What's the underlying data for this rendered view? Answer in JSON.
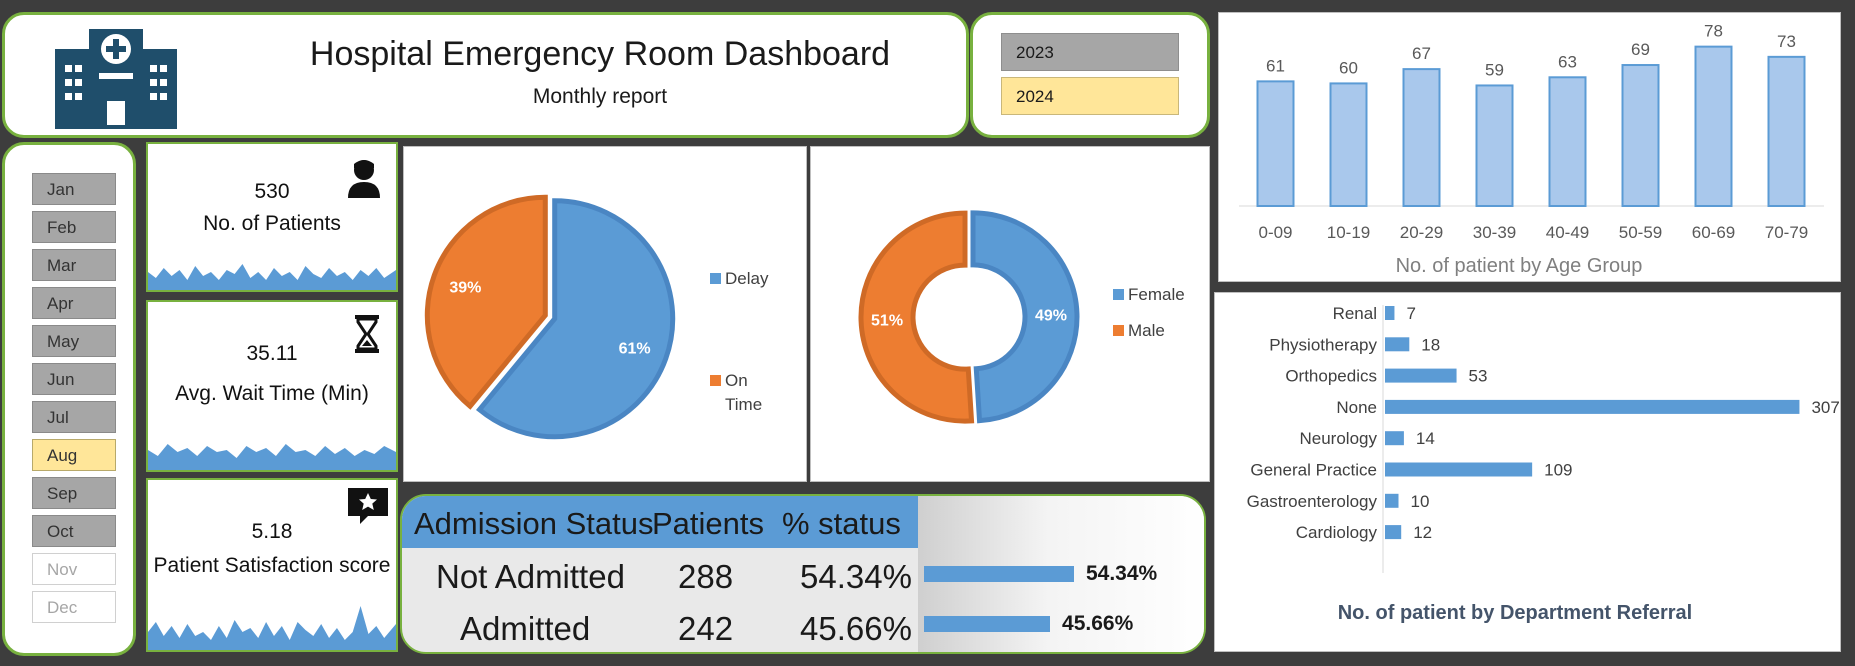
{
  "header": {
    "title": "Hospital Emergency Room Dashboard",
    "subtitle": "Monthly report",
    "icon": "hospital-building-icon"
  },
  "years": [
    {
      "label": "2023",
      "selected": false
    },
    {
      "label": "2024",
      "selected": true
    }
  ],
  "months": [
    {
      "label": "Jan",
      "state": "normal"
    },
    {
      "label": "Feb",
      "state": "normal"
    },
    {
      "label": "Mar",
      "state": "normal"
    },
    {
      "label": "Apr",
      "state": "normal"
    },
    {
      "label": "May",
      "state": "normal"
    },
    {
      "label": "Jun",
      "state": "normal"
    },
    {
      "label": "Jul",
      "state": "normal"
    },
    {
      "label": "Aug",
      "state": "selected"
    },
    {
      "label": "Sep",
      "state": "normal"
    },
    {
      "label": "Oct",
      "state": "normal"
    },
    {
      "label": "Nov",
      "state": "disabled"
    },
    {
      "label": "Dec",
      "state": "disabled"
    }
  ],
  "kpis": {
    "patients": {
      "value": "530",
      "label": "No. of Patients",
      "icon": "patient-icon"
    },
    "wait": {
      "value": "35.11",
      "label": "Avg. Wait Time (Min)",
      "icon": "hourglass-icon"
    },
    "satisfaction": {
      "value": "5.18",
      "label": "Patient Satisfaction score",
      "icon": "star-review-icon"
    }
  },
  "admission": {
    "headers": [
      "Admission Status",
      "Patients",
      "% status"
    ],
    "rows": [
      {
        "status": "Not Admitted",
        "patients": "288",
        "percent": "54.34%",
        "fraction": 0.5434
      },
      {
        "status": "Admitted",
        "patients": "242",
        "percent": "45.66%",
        "fraction": 0.4566
      }
    ]
  },
  "colors": {
    "blue": "#5b9bd5",
    "orange": "#ed7d31",
    "green_border": "#78b13f",
    "yellow": "#ffe699"
  },
  "chart_data": [
    {
      "type": "pie",
      "categories": [
        "Delay",
        "On Time"
      ],
      "values": [
        61,
        39
      ],
      "labels": [
        "61%",
        "39%"
      ],
      "legend": "right"
    },
    {
      "type": "pie",
      "variant": "donut",
      "categories": [
        "Female",
        "Male"
      ],
      "values": [
        49,
        51
      ],
      "labels": [
        "49%",
        "51%"
      ],
      "legend": "right"
    },
    {
      "type": "bar",
      "title": "No. of patient by Age Group",
      "categories": [
        "0-09",
        "10-19",
        "20-29",
        "30-39",
        "40-49",
        "50-59",
        "60-69",
        "70-79"
      ],
      "values": [
        61,
        60,
        67,
        59,
        63,
        69,
        78,
        73
      ],
      "ylim": [
        0,
        85
      ]
    },
    {
      "type": "bar",
      "orientation": "horizontal",
      "title": "No. of patient by Department Referral",
      "categories": [
        "Renal",
        "Physiotherapy",
        "Orthopedics",
        "None",
        "Neurology",
        "General Practice",
        "Gastroenterology",
        "Cardiology"
      ],
      "values": [
        7,
        18,
        53,
        307,
        14,
        109,
        10,
        12
      ],
      "xlim": [
        0,
        320
      ]
    }
  ]
}
